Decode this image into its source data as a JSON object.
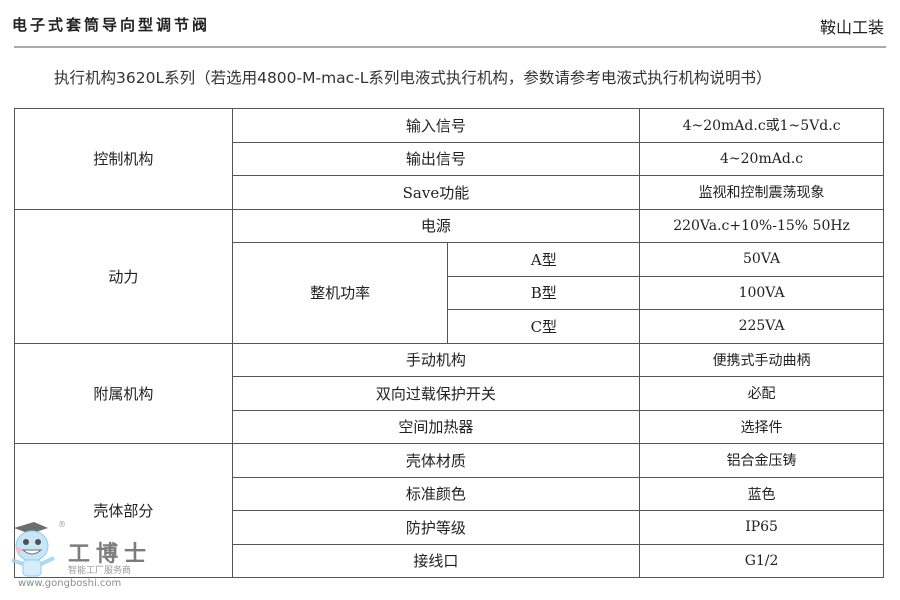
{
  "header": {
    "title": "电子式套筒导向型调节阀",
    "brand": "鞍山工装"
  },
  "subtitle": "执行机构3620L系列（若选用4800-M-mac-L系列电液式执行机构，参数请参考电液式执行机构说明书）",
  "table": {
    "control": {
      "group": "控制机构",
      "rows": [
        [
          "输入信号",
          "4~20mAd.c或1~5Vd.c"
        ],
        [
          "输出信号",
          "4~20mAd.c"
        ],
        [
          "Save功能",
          "监视和控制震荡现象"
        ]
      ]
    },
    "power": {
      "group": "动力",
      "supply": [
        "电源",
        "220Va.c+10%-15% 50Hz"
      ],
      "power_label": "整机功率",
      "types": [
        [
          "A型",
          "50VA"
        ],
        [
          "B型",
          "100VA"
        ],
        [
          "C型",
          "225VA"
        ]
      ]
    },
    "accessory": {
      "group": "附属机构",
      "rows": [
        [
          "手动机构",
          "便携式手动曲柄"
        ],
        [
          "双向过载保护开关",
          "必配"
        ],
        [
          "空间加热器",
          "选择件"
        ]
      ]
    },
    "housing": {
      "group": "壳体部分",
      "rows": [
        [
          "壳体材质",
          "铝合金压铸"
        ],
        [
          "标准颜色",
          "蓝色"
        ],
        [
          "防护等级",
          "IP65"
        ],
        [
          "接线口",
          "G1/2"
        ]
      ]
    }
  },
  "watermark": {
    "logo": "工博士",
    "tagline": "智能工厂服务商",
    "url": "www.gongboshi.com",
    "reg": "®"
  }
}
